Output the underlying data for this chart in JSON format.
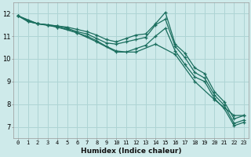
{
  "xlabel": "Humidex (Indice chaleur)",
  "xlim": [
    -0.5,
    23.5
  ],
  "ylim": [
    6.5,
    12.5
  ],
  "xticks": [
    0,
    1,
    2,
    3,
    4,
    5,
    6,
    7,
    8,
    9,
    10,
    11,
    12,
    13,
    14,
    15,
    16,
    17,
    18,
    19,
    20,
    21,
    22,
    23
  ],
  "yticks": [
    7,
    8,
    9,
    10,
    11,
    12
  ],
  "bg_color": "#ceeaea",
  "line_color": "#1a6e5e",
  "grid_color": "#aed4d4",
  "figsize": [
    3.2,
    2.0
  ],
  "dpi": 100,
  "series": [
    {
      "x": [
        0,
        1,
        2,
        3,
        4,
        5,
        6,
        7,
        8,
        9,
        10,
        11,
        12,
        13,
        14,
        15,
        16,
        17,
        18,
        19,
        20,
        21,
        22,
        23
      ],
      "y": [
        11.9,
        11.7,
        11.55,
        11.5,
        11.45,
        11.4,
        11.3,
        11.2,
        11.05,
        10.85,
        10.75,
        10.9,
        11.05,
        11.1,
        11.55,
        12.05,
        10.65,
        10.25,
        9.6,
        9.35,
        8.55,
        8.1,
        7.35,
        7.5
      ]
    },
    {
      "x": [
        0,
        1,
        2,
        3,
        4,
        5,
        6,
        7,
        8,
        9,
        10,
        11,
        12,
        13,
        14,
        15,
        16,
        17,
        18,
        19,
        20,
        21,
        22,
        23
      ],
      "y": [
        11.9,
        11.65,
        11.55,
        11.5,
        11.45,
        11.35,
        11.2,
        11.1,
        10.9,
        10.7,
        10.65,
        10.75,
        10.85,
        10.95,
        11.5,
        11.75,
        10.55,
        10.05,
        9.4,
        9.15,
        8.4,
        7.95,
        7.15,
        7.3
      ]
    },
    {
      "x": [
        0,
        1,
        2,
        3,
        4,
        5,
        6,
        7,
        8,
        9,
        10,
        11,
        12,
        13,
        14,
        15,
        16,
        17,
        18,
        19,
        20,
        21,
        22,
        23
      ],
      "y": [
        11.9,
        11.65,
        11.55,
        11.5,
        11.4,
        11.3,
        11.15,
        11.0,
        10.8,
        10.55,
        10.35,
        10.3,
        10.45,
        10.6,
        11.0,
        11.35,
        10.35,
        9.75,
        9.2,
        9.0,
        8.25,
        7.8,
        7.05,
        7.2
      ]
    },
    {
      "x": [
        0,
        2,
        4,
        6,
        8,
        10,
        12,
        14,
        16,
        18,
        20,
        22,
        23
      ],
      "y": [
        11.9,
        11.55,
        11.4,
        11.15,
        10.75,
        10.3,
        10.3,
        10.65,
        10.2,
        9.0,
        8.2,
        7.5,
        7.5
      ]
    }
  ]
}
